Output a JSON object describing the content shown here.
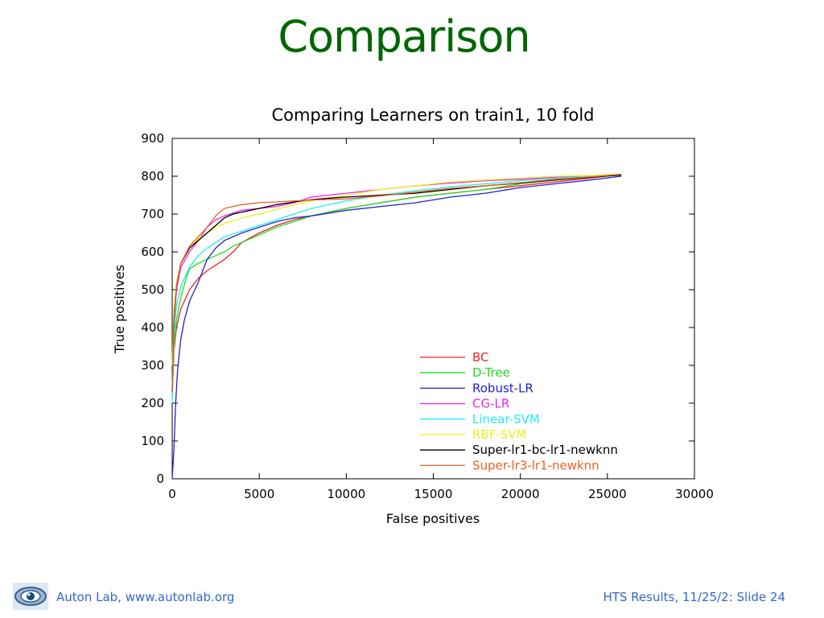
{
  "slide": {
    "title": "Comparison"
  },
  "footer": {
    "left": "Auton Lab, www.autonlab.org",
    "right": "HTS Results, 11/25/2: Slide 24",
    "logo_icon": "eye-logo-icon"
  },
  "chart_data": {
    "type": "line",
    "title": "Comparing Learners on train1, 10 fold",
    "xlabel": "False positives",
    "ylabel": "True positives",
    "xlim": [
      0,
      30000
    ],
    "ylim": [
      0,
      900
    ],
    "xticks": [
      0,
      5000,
      10000,
      15000,
      20000,
      25000,
      30000
    ],
    "yticks": [
      0,
      100,
      200,
      300,
      400,
      500,
      600,
      700,
      800,
      900
    ],
    "grid": false,
    "legend_position": "bottom-right",
    "series": [
      {
        "name": "BC",
        "color": "#e8242b",
        "points": [
          [
            0,
            220
          ],
          [
            100,
            340
          ],
          [
            250,
            400
          ],
          [
            500,
            450
          ],
          [
            1000,
            500
          ],
          [
            1500,
            530
          ],
          [
            2000,
            550
          ],
          [
            2500,
            565
          ],
          [
            3000,
            580
          ],
          [
            3500,
            600
          ],
          [
            4000,
            625
          ],
          [
            5000,
            650
          ],
          [
            6000,
            670
          ],
          [
            7000,
            685
          ],
          [
            8000,
            695
          ],
          [
            9000,
            705
          ],
          [
            10000,
            715
          ],
          [
            12000,
            730
          ],
          [
            14000,
            745
          ],
          [
            16000,
            755
          ],
          [
            18000,
            765
          ],
          [
            20000,
            775
          ],
          [
            22000,
            785
          ],
          [
            24000,
            795
          ],
          [
            25800,
            805
          ]
        ]
      },
      {
        "name": "D-Tree",
        "color": "#22dd22",
        "points": [
          [
            0,
            210
          ],
          [
            100,
            350
          ],
          [
            250,
            420
          ],
          [
            500,
            480
          ],
          [
            800,
            530
          ],
          [
            1000,
            555
          ],
          [
            1500,
            570
          ],
          [
            2000,
            580
          ],
          [
            2500,
            590
          ],
          [
            3000,
            600
          ],
          [
            3500,
            615
          ],
          [
            4000,
            625
          ],
          [
            5000,
            645
          ],
          [
            6000,
            665
          ],
          [
            7000,
            680
          ],
          [
            8000,
            695
          ],
          [
            9000,
            705
          ],
          [
            10000,
            715
          ],
          [
            12000,
            730
          ],
          [
            14000,
            745
          ],
          [
            16000,
            755
          ],
          [
            18000,
            765
          ],
          [
            20000,
            780
          ],
          [
            22000,
            790
          ],
          [
            24000,
            798
          ],
          [
            25800,
            805
          ]
        ]
      },
      {
        "name": "Robust-LR",
        "color": "#2222cc",
        "points": [
          [
            0,
            0
          ],
          [
            100,
            80
          ],
          [
            200,
            200
          ],
          [
            300,
            280
          ],
          [
            400,
            330
          ],
          [
            500,
            370
          ],
          [
            700,
            420
          ],
          [
            1000,
            470
          ],
          [
            1500,
            520
          ],
          [
            2000,
            580
          ],
          [
            2500,
            610
          ],
          [
            3000,
            630
          ],
          [
            4000,
            650
          ],
          [
            5000,
            665
          ],
          [
            6000,
            680
          ],
          [
            7000,
            690
          ],
          [
            8000,
            695
          ],
          [
            10000,
            710
          ],
          [
            12000,
            720
          ],
          [
            14000,
            730
          ],
          [
            16000,
            745
          ],
          [
            18000,
            755
          ],
          [
            20000,
            770
          ],
          [
            22000,
            780
          ],
          [
            24000,
            790
          ],
          [
            25800,
            800
          ]
        ]
      },
      {
        "name": "CG-LR",
        "color": "#ee22ee",
        "points": [
          [
            0,
            230
          ],
          [
            100,
            420
          ],
          [
            250,
            500
          ],
          [
            500,
            560
          ],
          [
            1000,
            600
          ],
          [
            1500,
            630
          ],
          [
            2000,
            665
          ],
          [
            2500,
            685
          ],
          [
            3000,
            695
          ],
          [
            4000,
            710
          ],
          [
            5000,
            715
          ],
          [
            6000,
            720
          ],
          [
            7000,
            730
          ],
          [
            8000,
            745
          ],
          [
            10000,
            755
          ],
          [
            12000,
            765
          ],
          [
            14000,
            775
          ],
          [
            16000,
            782
          ],
          [
            18000,
            788
          ],
          [
            20000,
            792
          ],
          [
            22000,
            797
          ],
          [
            24000,
            800
          ],
          [
            25800,
            805
          ]
        ]
      },
      {
        "name": "Linear-SVM",
        "color": "#22eeee",
        "points": [
          [
            0,
            200
          ],
          [
            100,
            380
          ],
          [
            250,
            460
          ],
          [
            500,
            510
          ],
          [
            1000,
            560
          ],
          [
            1500,
            590
          ],
          [
            2000,
            610
          ],
          [
            2500,
            625
          ],
          [
            3000,
            640
          ],
          [
            4000,
            655
          ],
          [
            5000,
            670
          ],
          [
            6000,
            685
          ],
          [
            7000,
            700
          ],
          [
            8000,
            715
          ],
          [
            9000,
            725
          ],
          [
            10000,
            735
          ],
          [
            12000,
            750
          ],
          [
            14000,
            762
          ],
          [
            16000,
            772
          ],
          [
            18000,
            780
          ],
          [
            20000,
            788
          ],
          [
            22000,
            795
          ],
          [
            24000,
            800
          ],
          [
            25800,
            805
          ]
        ]
      },
      {
        "name": "RBF-SVM",
        "color": "#eeee22",
        "points": [
          [
            0,
            300
          ],
          [
            100,
            450
          ],
          [
            250,
            520
          ],
          [
            500,
            570
          ],
          [
            1000,
            610
          ],
          [
            1500,
            635
          ],
          [
            2000,
            650
          ],
          [
            2500,
            665
          ],
          [
            3000,
            675
          ],
          [
            4000,
            690
          ],
          [
            5000,
            700
          ],
          [
            6000,
            712
          ],
          [
            7000,
            725
          ],
          [
            8000,
            735
          ],
          [
            10000,
            750
          ],
          [
            12000,
            765
          ],
          [
            14000,
            775
          ],
          [
            16000,
            785
          ],
          [
            18000,
            790
          ],
          [
            20000,
            795
          ],
          [
            22000,
            800
          ],
          [
            24000,
            802
          ],
          [
            25800,
            805
          ]
        ]
      },
      {
        "name": "Super-lr1-bc-lr1-newknn",
        "color": "#000000",
        "points": [
          [
            0,
            230
          ],
          [
            100,
            420
          ],
          [
            250,
            510
          ],
          [
            500,
            570
          ],
          [
            1000,
            610
          ],
          [
            1500,
            630
          ],
          [
            2000,
            650
          ],
          [
            2500,
            670
          ],
          [
            3000,
            690
          ],
          [
            3500,
            700
          ],
          [
            4000,
            705
          ],
          [
            5000,
            715
          ],
          [
            6000,
            725
          ],
          [
            7000,
            732
          ],
          [
            8000,
            738
          ],
          [
            9000,
            742
          ],
          [
            10000,
            745
          ],
          [
            12000,
            750
          ],
          [
            14000,
            755
          ],
          [
            16000,
            765
          ],
          [
            18000,
            775
          ],
          [
            20000,
            782
          ],
          [
            22000,
            790
          ],
          [
            24000,
            797
          ],
          [
            25800,
            803
          ]
        ]
      },
      {
        "name": "Super-lr3-lr1-newknn",
        "color": "#f06020",
        "points": [
          [
            0,
            230
          ],
          [
            100,
            430
          ],
          [
            250,
            510
          ],
          [
            500,
            570
          ],
          [
            1000,
            615
          ],
          [
            1500,
            640
          ],
          [
            2000,
            665
          ],
          [
            2500,
            695
          ],
          [
            3000,
            715
          ],
          [
            3500,
            720
          ],
          [
            4000,
            725
          ],
          [
            5000,
            730
          ],
          [
            6000,
            732
          ],
          [
            7000,
            735
          ],
          [
            8000,
            737
          ],
          [
            10000,
            740
          ],
          [
            12000,
            748
          ],
          [
            14000,
            758
          ],
          [
            16000,
            768
          ],
          [
            18000,
            775
          ],
          [
            20000,
            783
          ],
          [
            22000,
            792
          ],
          [
            24000,
            798
          ],
          [
            25800,
            805
          ]
        ]
      }
    ]
  }
}
